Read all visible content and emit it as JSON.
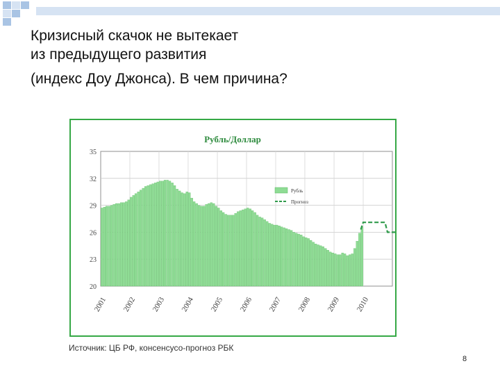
{
  "slide": {
    "title_lines": [
      "Кризисный скачок не вытекает",
      "из предыдущего развития",
      "(индекс Доу Джонса). В чем причина?"
    ],
    "source": "Источник: ЦБ РФ, консенсусо-прогноз РБК",
    "page_number": "8",
    "accent_colors": {
      "checker_dark": "#a9c4e4",
      "checker_light": "#d6e3f3",
      "frame": "#35a845"
    }
  },
  "chart_data": {
    "type": "bar",
    "title": "Рубль/Доллар",
    "xlabel": "",
    "ylabel": "",
    "ylim": [
      20,
      35
    ],
    "yticks": [
      20,
      23,
      26,
      29,
      32,
      35
    ],
    "x_tick_labels": [
      "2001",
      "2002",
      "2003",
      "2004",
      "2005",
      "2006",
      "2007",
      "2008",
      "2009",
      "2010"
    ],
    "grid": true,
    "legend_position": "right",
    "series": [
      {
        "name": "Рубль",
        "kind": "bar",
        "color": "#8fdc95",
        "stroke": "#5cb862",
        "start": "2001-01",
        "end": "2009-12",
        "values": [
          28.7,
          28.8,
          28.9,
          28.9,
          29.0,
          29.1,
          29.2,
          29.2,
          29.3,
          29.3,
          29.4,
          29.6,
          29.9,
          30.1,
          30.3,
          30.5,
          30.7,
          30.9,
          31.1,
          31.2,
          31.3,
          31.4,
          31.5,
          31.6,
          31.7,
          31.7,
          31.8,
          31.8,
          31.7,
          31.5,
          31.2,
          30.8,
          30.6,
          30.4,
          30.3,
          30.5,
          30.4,
          29.8,
          29.4,
          29.2,
          29.0,
          28.9,
          28.9,
          29.1,
          29.2,
          29.3,
          29.2,
          28.9,
          28.7,
          28.4,
          28.2,
          28.0,
          27.9,
          27.9,
          27.9,
          28.1,
          28.3,
          28.4,
          28.5,
          28.6,
          28.7,
          28.6,
          28.4,
          28.2,
          27.9,
          27.7,
          27.6,
          27.4,
          27.2,
          27.0,
          26.9,
          26.8,
          26.8,
          26.7,
          26.6,
          26.5,
          26.4,
          26.3,
          26.2,
          26.0,
          25.9,
          25.8,
          25.7,
          25.5,
          25.4,
          25.3,
          25.1,
          24.9,
          24.7,
          24.6,
          24.5,
          24.4,
          24.2,
          24.0,
          23.8,
          23.7,
          23.6,
          23.5,
          23.5,
          23.7,
          23.6,
          23.4,
          23.5,
          23.6,
          24.2,
          25.0,
          25.9,
          26.6
        ]
      },
      {
        "name": "Прогноз",
        "kind": "line-dashed",
        "color": "#2e9a4a",
        "x": [
          "2009-12",
          "2010-01",
          "2010-10",
          "2010-11",
          "2011-12"
        ],
        "values": [
          26.3,
          27.1,
          27.1,
          26.0,
          26.0
        ]
      }
    ]
  }
}
